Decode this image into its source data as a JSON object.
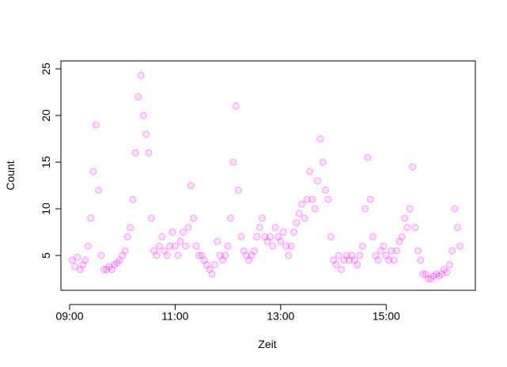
{
  "chart_data": {
    "type": "scatter",
    "x_label": "Zeit",
    "y_label": "Count",
    "series": [
      {
        "name": "Count",
        "color": "#ff00ff",
        "x": [
          9.05,
          9.1,
          9.15,
          9.2,
          9.25,
          9.3,
          9.35,
          9.4,
          9.45,
          9.5,
          9.55,
          9.6,
          9.65,
          9.7,
          9.75,
          9.8,
          9.85,
          9.9,
          9.95,
          10.0,
          10.05,
          10.1,
          10.15,
          10.2,
          10.25,
          10.3,
          10.35,
          10.4,
          10.45,
          10.5,
          10.55,
          10.6,
          10.65,
          10.7,
          10.75,
          10.8,
          10.85,
          10.9,
          10.95,
          11.0,
          11.05,
          11.1,
          11.15,
          11.2,
          11.25,
          11.3,
          11.35,
          11.4,
          11.45,
          11.5,
          11.55,
          11.6,
          11.65,
          11.7,
          11.75,
          11.8,
          11.85,
          11.9,
          11.95,
          12.0,
          12.05,
          12.1,
          12.15,
          12.2,
          12.25,
          12.3,
          12.35,
          12.4,
          12.45,
          12.5,
          12.55,
          12.6,
          12.65,
          12.7,
          12.75,
          12.8,
          12.85,
          12.9,
          12.95,
          13.0,
          13.05,
          13.1,
          13.15,
          13.2,
          13.25,
          13.3,
          13.35,
          13.4,
          13.45,
          13.5,
          13.55,
          13.6,
          13.65,
          13.7,
          13.75,
          13.8,
          13.85,
          13.9,
          13.95,
          14.0,
          14.05,
          14.1,
          14.15,
          14.2,
          14.25,
          14.3,
          14.35,
          14.4,
          14.45,
          14.5,
          14.55,
          14.6,
          14.65,
          14.7,
          14.75,
          14.8,
          14.85,
          14.9,
          14.95,
          15.0,
          15.05,
          15.1,
          15.15,
          15.2,
          15.25,
          15.3,
          15.35,
          15.4,
          15.45,
          15.5,
          15.55,
          15.6,
          15.65,
          15.7,
          15.75,
          15.8,
          15.85,
          15.9,
          15.95,
          16.0,
          16.05,
          16.1,
          16.15,
          16.2,
          16.25,
          16.3,
          16.35,
          16.4
        ],
        "values": [
          4.5,
          3.8,
          4.8,
          3.5,
          4,
          4.5,
          6,
          9,
          14,
          19,
          12,
          5,
          3.5,
          3.5,
          3.8,
          3.5,
          4,
          4.2,
          4.5,
          5,
          5.5,
          7,
          8,
          11,
          16,
          22,
          24.3,
          20,
          18,
          16,
          9,
          5.5,
          5,
          6,
          7,
          5.5,
          5,
          6,
          7.5,
          6,
          5,
          6.5,
          7.5,
          6,
          8,
          12.5,
          9,
          6,
          5,
          5,
          4.5,
          4,
          3.5,
          3,
          4,
          6.5,
          5,
          4.5,
          5,
          6,
          9,
          15,
          21,
          12,
          7,
          5.5,
          5,
          4.5,
          5,
          5.5,
          7,
          8,
          9,
          7,
          6.5,
          7,
          6,
          8,
          7,
          6.5,
          7.5,
          6,
          5,
          6,
          7.5,
          8.5,
          9.5,
          10.5,
          9,
          11,
          14,
          11,
          10,
          13,
          17.5,
          15,
          12,
          11,
          7,
          4.5,
          4,
          5,
          3.5,
          4.5,
          5,
          4.5,
          5,
          4.5,
          4,
          5,
          6,
          10,
          15.5,
          11,
          7,
          5,
          4.5,
          5.5,
          6,
          5,
          4.5,
          5.5,
          4.5,
          5.5,
          6.5,
          7,
          9,
          8,
          10,
          14.5,
          8,
          5.5,
          4.5,
          3,
          3,
          2.5,
          2.5,
          2.8,
          3,
          2.8,
          3,
          3.5,
          3.2,
          4,
          5.5,
          10,
          8,
          6
        ]
      }
    ],
    "xlim": [
      8.835,
      16.69
    ],
    "xticks": [
      {
        "value": 9,
        "label": "09:00"
      },
      {
        "value": 11,
        "label": "11:00"
      },
      {
        "value": 13,
        "label": "13:00"
      },
      {
        "value": 15,
        "label": "15:00"
      }
    ],
    "ylim": [
      1.27,
      25.85
    ],
    "yticks": [
      5,
      10,
      15,
      20,
      25
    ],
    "grid": false
  }
}
